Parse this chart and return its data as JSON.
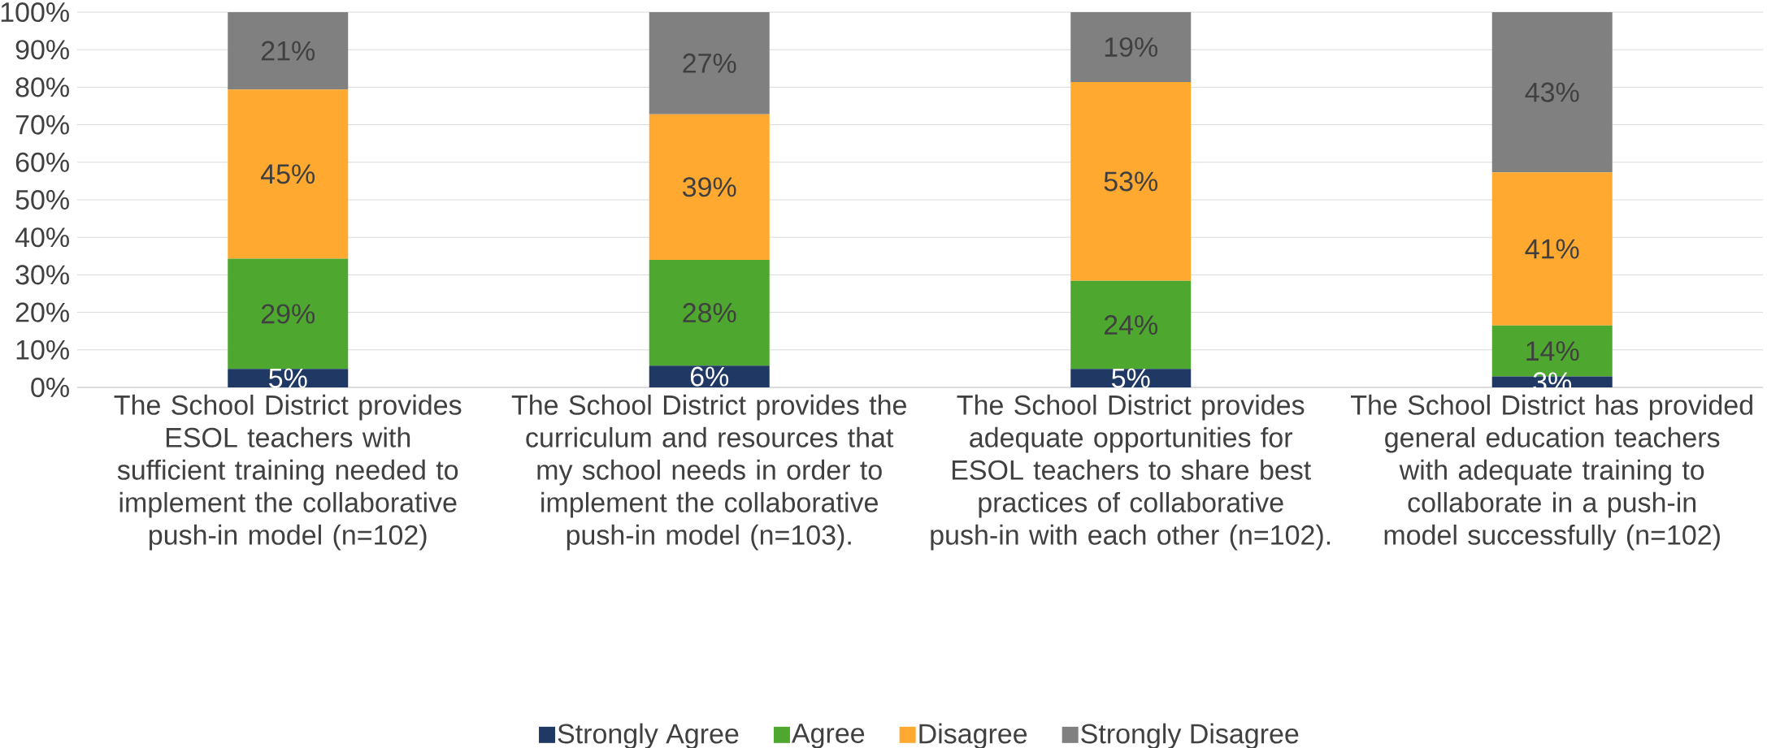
{
  "chart_data": {
    "type": "bar",
    "stacked": true,
    "categories": [
      "The School District provides ESOL teachers with sufficient training needed to implement the collaborative push-in model (n=102)",
      "The School District provides the curriculum and resources that my school needs in order to implement the collaborative push-in model (n=103).",
      "The School District provides adequate opportunities for ESOL teachers to share best practices of collaborative push-in with each other (n=102).",
      "The School District has provided general education teachers with adequate training to collaborate in a push-in model successfully (n=102)"
    ],
    "series": [
      {
        "name": "Strongly Agree",
        "color": "#1f3864",
        "values": [
          4.9,
          5.8,
          4.9,
          2.9
        ],
        "value_labels": [
          "5%",
          "6%",
          "5%",
          "3%"
        ]
      },
      {
        "name": "Agree",
        "color": "#4ea72e",
        "values": [
          29.4,
          28.2,
          23.5,
          13.6
        ],
        "value_labels": [
          "29%",
          "28%",
          "24%",
          "14%"
        ]
      },
      {
        "name": "Disagree",
        "color": "#ffa931",
        "values": [
          45.1,
          38.8,
          53.0,
          40.8
        ],
        "value_labels": [
          "45%",
          "39%",
          "53%",
          "41%"
        ]
      },
      {
        "name": "Strongly Disagree",
        "color": "#808080",
        "values": [
          20.6,
          27.2,
          18.6,
          42.7
        ],
        "value_labels": [
          "21%",
          "27%",
          "19%",
          "43%"
        ]
      }
    ],
    "ylim": [
      0,
      100
    ],
    "yticks": [
      {
        "value": 0,
        "label": "0%"
      },
      {
        "value": 10,
        "label": "10%"
      },
      {
        "value": 20,
        "label": "20%"
      },
      {
        "value": 30,
        "label": "30%"
      },
      {
        "value": 40,
        "label": "40%"
      },
      {
        "value": 50,
        "label": "50%"
      },
      {
        "value": 60,
        "label": "60%"
      },
      {
        "value": 70,
        "label": "70%"
      },
      {
        "value": 80,
        "label": "80%"
      },
      {
        "value": 90,
        "label": "90%"
      },
      {
        "value": 100,
        "label": "100%"
      }
    ],
    "grid": "y",
    "legend": "bottom"
  }
}
